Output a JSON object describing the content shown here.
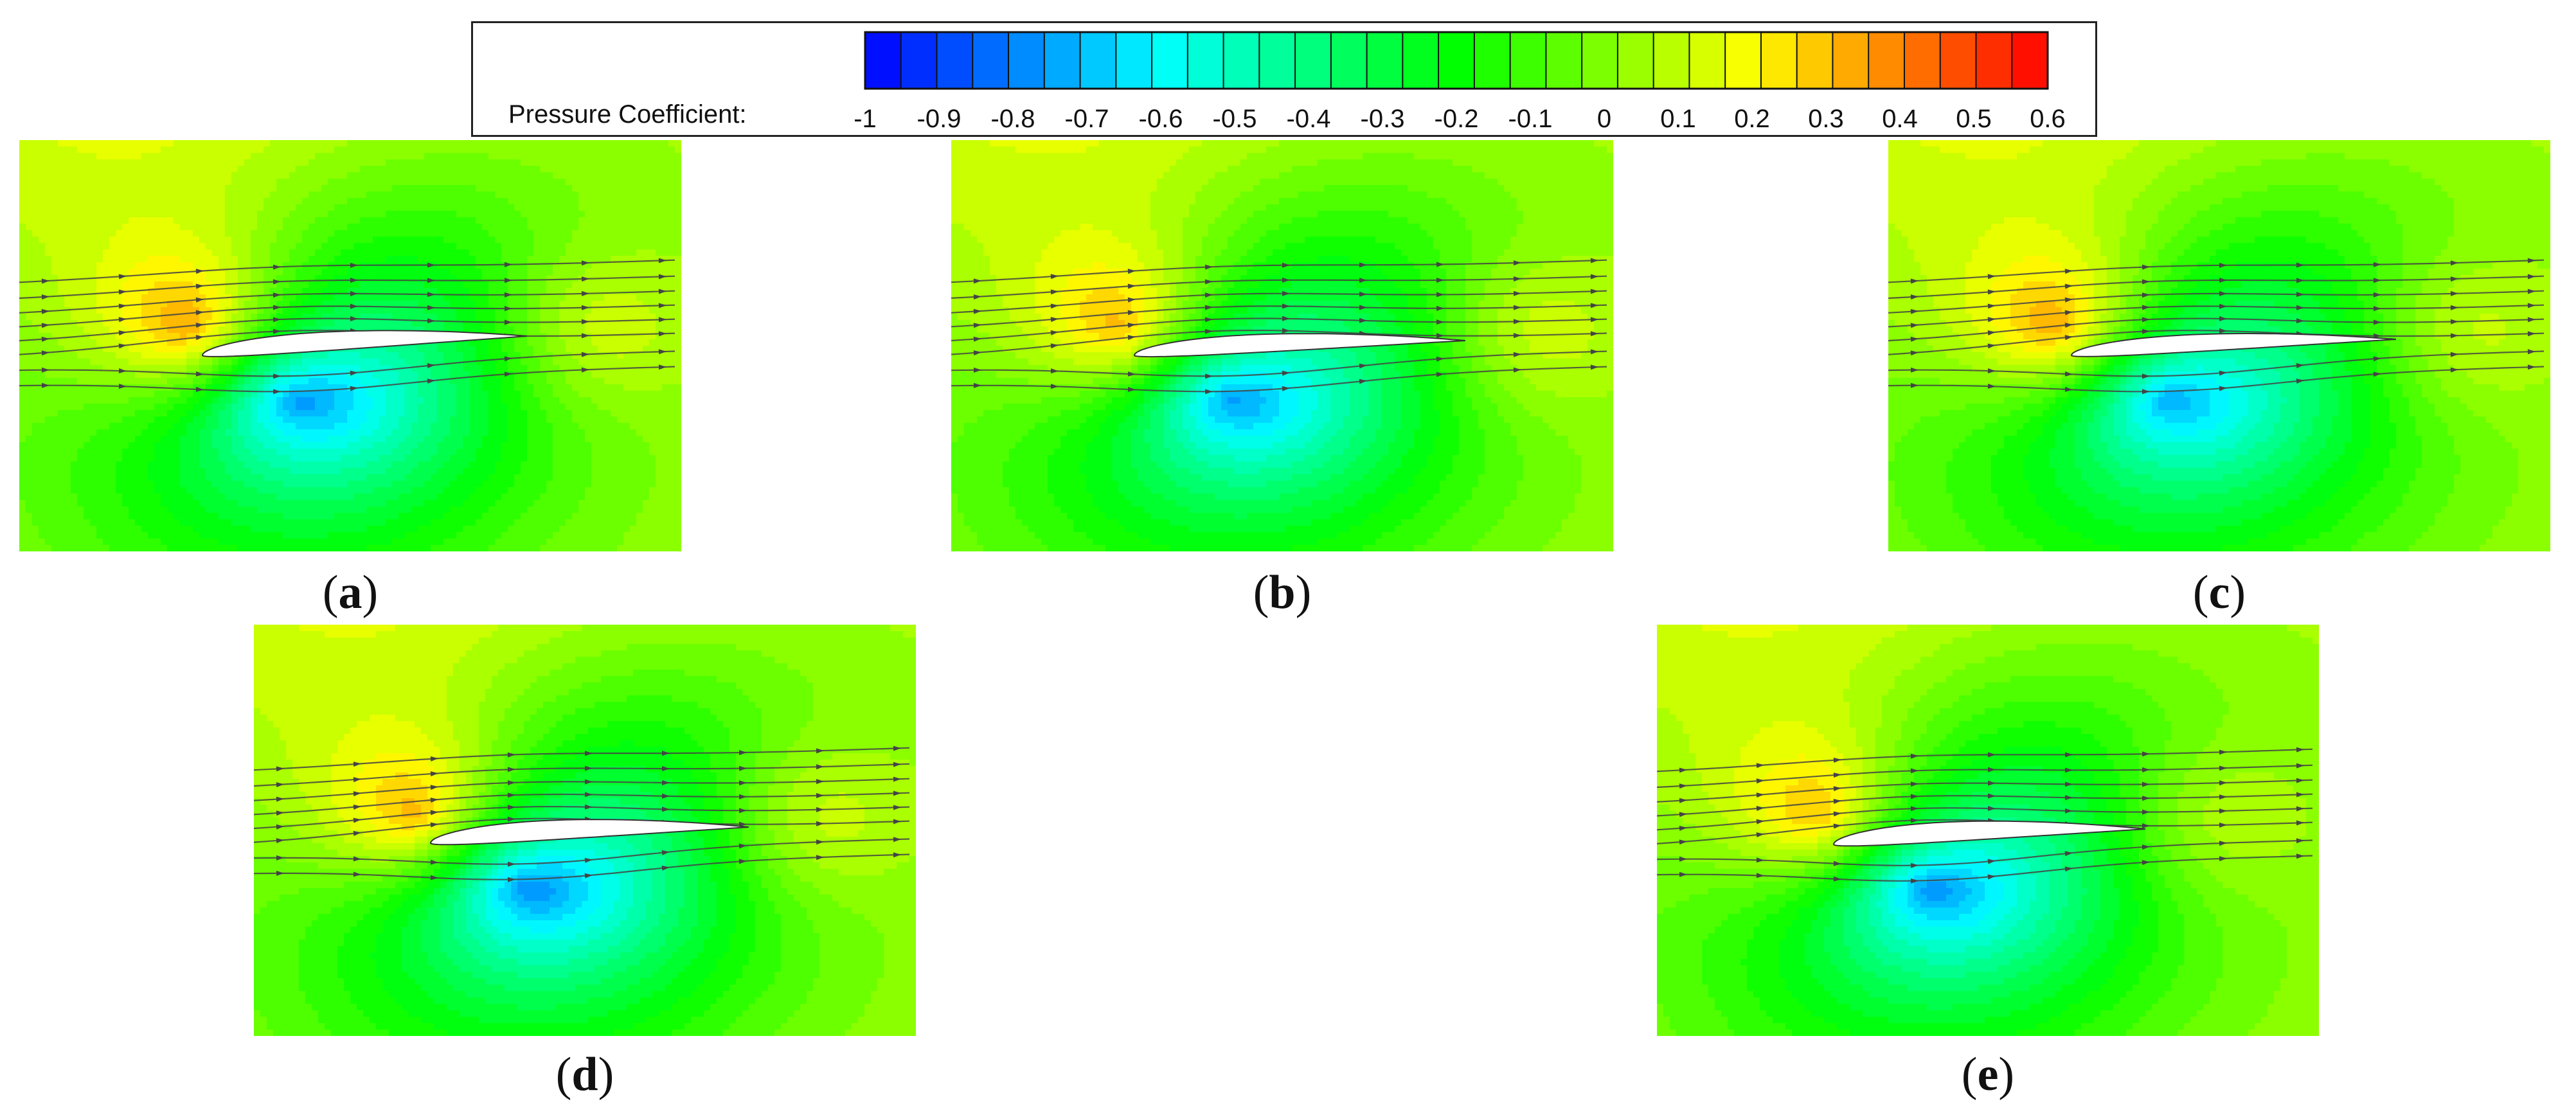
{
  "legend": {
    "label": "Pressure Coefficient:",
    "ticks": [
      "-1",
      "-0.9",
      "-0.8",
      "-0.7",
      "-0.6",
      "-0.5",
      "-0.4",
      "-0.3",
      "-0.2",
      "-0.1",
      "0",
      "0.1",
      "0.2",
      "0.3",
      "0.4",
      "0.5",
      "0.6"
    ],
    "range": [
      -1,
      0.6
    ],
    "levels": 33,
    "colormap": [
      "#0000ff",
      "#00ffff",
      "#00ff00",
      "#ffff00",
      "#ff0000"
    ]
  },
  "panels": [
    {
      "id": "a",
      "caption_open": "(",
      "caption_letter": "a",
      "caption_close": ")"
    },
    {
      "id": "b",
      "caption_open": "(",
      "caption_letter": "b",
      "caption_close": ")"
    },
    {
      "id": "c",
      "caption_open": "(",
      "caption_letter": "c",
      "caption_close": ")"
    },
    {
      "id": "d",
      "caption_open": "(",
      "caption_letter": "d",
      "caption_close": ")"
    },
    {
      "id": "e",
      "caption_open": "(",
      "caption_letter": "e",
      "caption_close": ")"
    }
  ]
}
